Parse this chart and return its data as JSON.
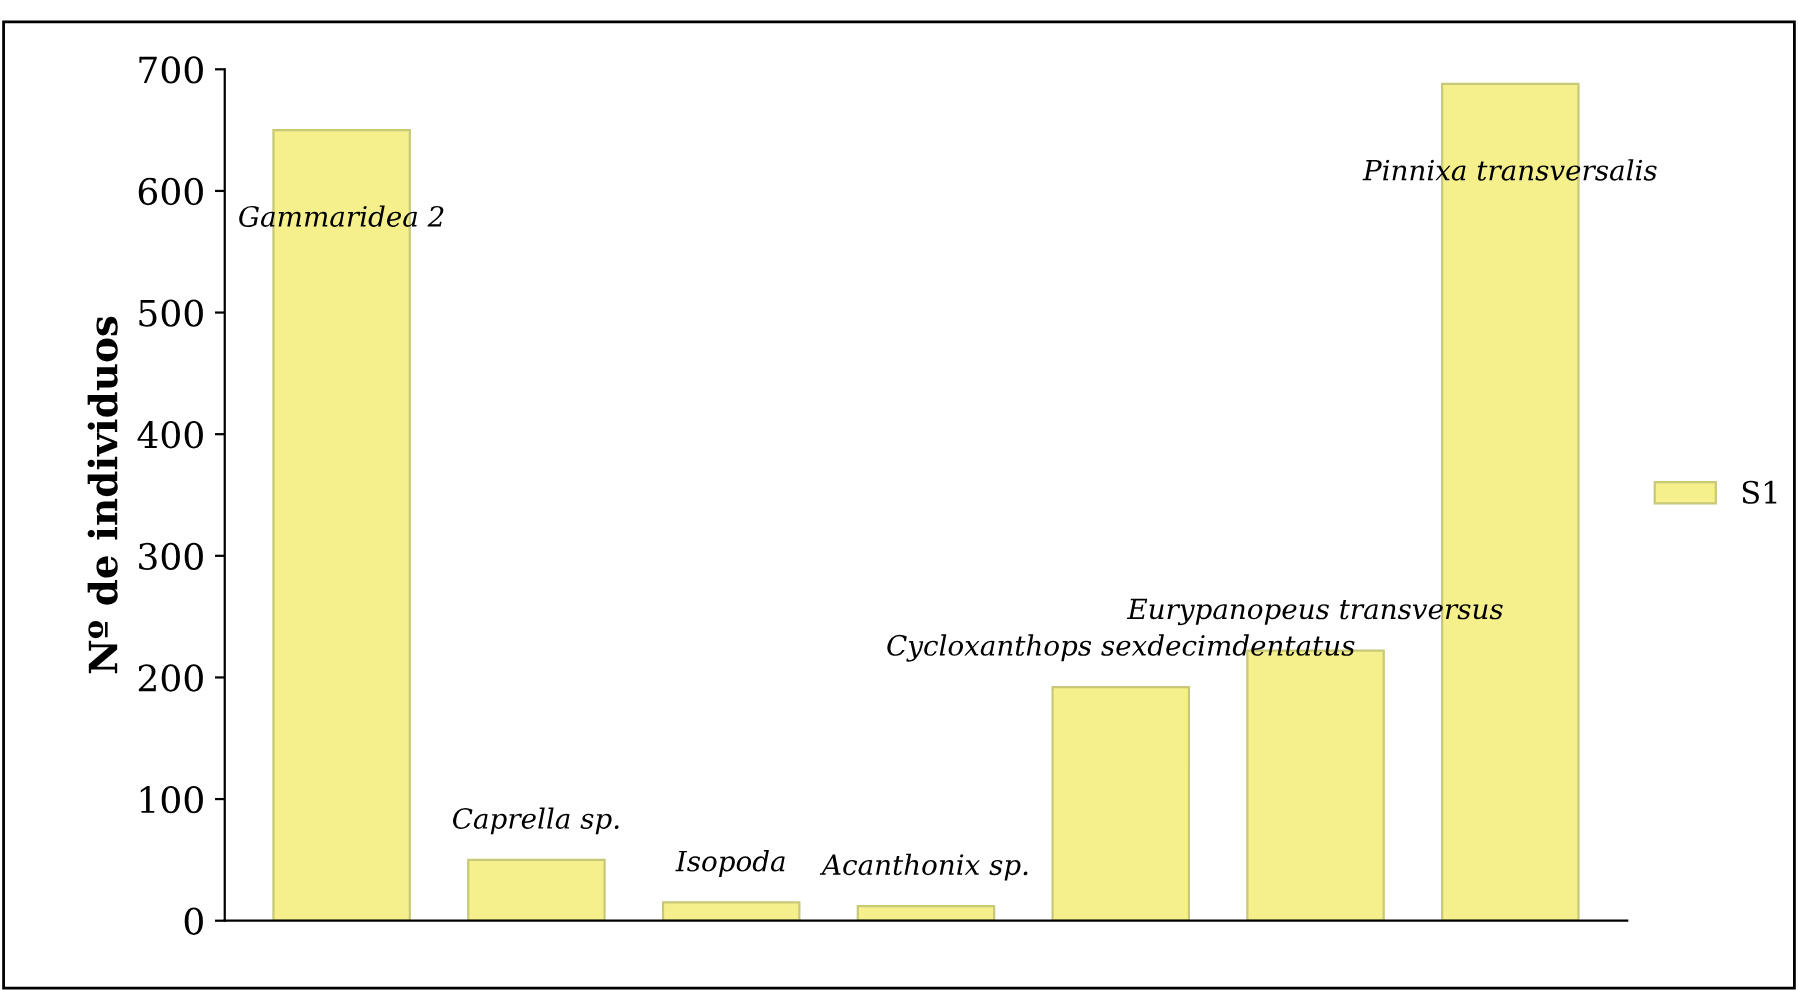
{
  "chart_data": {
    "type": "bar",
    "ylabel": "Nº de individuos",
    "categories": [
      "Gammaridea 2",
      "Caprella sp.",
      "Isopoda",
      "Acanthonix sp.",
      "Cycloxanthops sexdecimdentatus",
      "Eurypanopeus transversus",
      "Pinnixa transversalis"
    ],
    "series": [
      {
        "name": "S1",
        "color": "#f5f08c",
        "values": [
          650,
          50,
          15,
          12,
          192,
          222,
          688
        ]
      }
    ],
    "ylim": [
      0,
      700
    ],
    "yticks": [
      0,
      100,
      200,
      300,
      400,
      500,
      600,
      700
    ],
    "grid": false,
    "legend": "right"
  }
}
